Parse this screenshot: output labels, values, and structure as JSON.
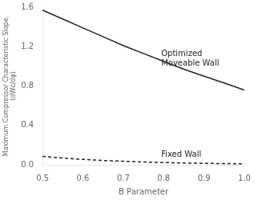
{
  "chart_data": {
    "type": "line",
    "xlabel": "B Parameter",
    "ylabel": [
      "Maximum Compressor Characteristic Slope,",
      "(dWc/dφ)"
    ],
    "x": [
      0.5,
      0.55,
      0.6,
      0.65,
      0.7,
      0.75,
      0.8,
      0.85,
      0.9,
      0.95,
      1.0
    ],
    "series": [
      {
        "values": [
          1.57,
          1.48,
          1.39,
          1.3,
          1.21,
          1.13,
          1.05,
          0.97,
          0.9,
          0.83,
          0.76
        ],
        "color": "#222222",
        "line_style": "solid"
      },
      {
        "values": [
          0.085,
          0.068,
          0.055,
          0.044,
          0.036,
          0.029,
          0.023,
          0.018,
          0.015,
          0.012,
          0.01
        ],
        "color": "#222222",
        "line_style": "dashed"
      }
    ],
    "annotations": [
      {
        "text": "Optimized\nMoveable Wall",
        "x": 0.79,
        "y": 1.08,
        "color": "#222222"
      },
      {
        "text": "Fixed Wall",
        "x": 0.79,
        "y": 0.1,
        "color": "#222222"
      }
    ],
    "xlim": [
      0.5,
      1.0
    ],
    "ylim": [
      0.0,
      1.6
    ],
    "xticks": [
      0.5,
      0.6,
      0.7,
      0.8,
      0.9,
      {
        "value": 1.0,
        "label": "1.0"
      }
    ],
    "yticks": [
      {
        "value": 0.0,
        "label": "0.0"
      },
      0.4,
      0.8,
      1.2,
      1.6
    ],
    "grid": false
  }
}
